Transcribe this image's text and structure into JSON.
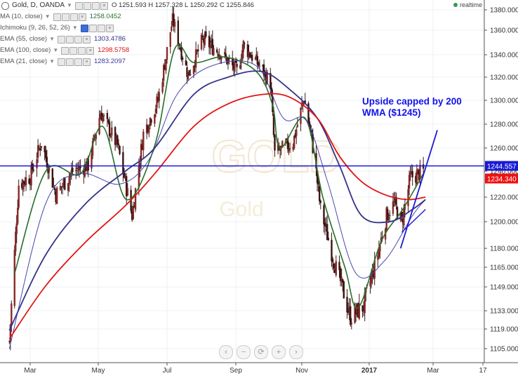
{
  "header": {
    "symbol": "Gold, D, OANDA",
    "ohlc": "O 1251.593 H 1257.328 L 1250.292 C 1255.846",
    "realtime_label": "realtime"
  },
  "indicators": [
    {
      "label": "MA (10, close)",
      "value": "1258.0452",
      "color": "#2a6e2a"
    },
    {
      "label": "Ichimoku (9, 26, 52, 26)",
      "value": "",
      "color": "#888888"
    },
    {
      "label": "EMA (55, close)",
      "value": "1303.4786",
      "color": "#33338a"
    },
    {
      "label": "EMA (100, close)",
      "value": "1298.5758",
      "color": "#dd1111"
    },
    {
      "label": "EMA (21, close)",
      "value": "1283.2097",
      "color": "#3a3aa0"
    }
  ],
  "annotation": {
    "line1": "Upside capped by 200",
    "line2": "WMA ($1245)"
  },
  "price_tags": [
    {
      "label": "1244.557",
      "color": "#1a1ad4"
    },
    {
      "label": "1234.340",
      "color": "#ee1111"
    }
  ],
  "watermark": {
    "symbol": "GOLD",
    "name": "Gold"
  },
  "zoom_controls": [
    "‹",
    "−",
    "⟳",
    "+",
    "›"
  ],
  "chart_data": {
    "type": "candlestick",
    "x_ticks": [
      "Mar",
      "May",
      "Jul",
      "Sep",
      "Nov",
      "2017",
      "Mar",
      "17"
    ],
    "y_ticks": [
      1380,
      1360,
      1340,
      1320,
      1300,
      1280,
      1260,
      1240,
      1220,
      1200,
      1180,
      1165,
      1149,
      1133,
      1119,
      1105
    ],
    "ylim": [
      1100,
      1385
    ],
    "ohlc_anchors": [
      {
        "date": "2016-02-10",
        "close": 1110
      },
      {
        "date": "2016-02-19",
        "close": 1230
      },
      {
        "date": "2016-03-01",
        "close": 1236
      },
      {
        "date": "2016-03-11",
        "close": 1265
      },
      {
        "date": "2016-03-24",
        "close": 1222
      },
      {
        "date": "2016-04-08",
        "close": 1240
      },
      {
        "date": "2016-04-22",
        "close": 1245
      },
      {
        "date": "2016-05-03",
        "close": 1290
      },
      {
        "date": "2016-05-18",
        "close": 1262
      },
      {
        "date": "2016-05-31",
        "close": 1205
      },
      {
        "date": "2016-06-10",
        "close": 1272
      },
      {
        "date": "2016-06-23",
        "close": 1300
      },
      {
        "date": "2016-07-06",
        "close": 1370
      },
      {
        "date": "2016-07-20",
        "close": 1322
      },
      {
        "date": "2016-08-02",
        "close": 1352
      },
      {
        "date": "2016-08-18",
        "close": 1342
      },
      {
        "date": "2016-09-02",
        "close": 1325
      },
      {
        "date": "2016-09-08",
        "close": 1348
      },
      {
        "date": "2016-09-23",
        "close": 1330
      },
      {
        "date": "2016-10-03",
        "close": 1315
      },
      {
        "date": "2016-10-07",
        "close": 1255
      },
      {
        "date": "2016-10-24",
        "close": 1265
      },
      {
        "date": "2016-11-03",
        "close": 1302
      },
      {
        "date": "2016-11-10",
        "close": 1268
      },
      {
        "date": "2016-11-18",
        "close": 1210
      },
      {
        "date": "2016-11-30",
        "close": 1170
      },
      {
        "date": "2016-12-15",
        "close": 1128
      },
      {
        "date": "2016-12-27",
        "close": 1136
      },
      {
        "date": "2017-01-06",
        "close": 1165
      },
      {
        "date": "2017-01-17",
        "close": 1205
      },
      {
        "date": "2017-01-24",
        "close": 1215
      },
      {
        "date": "2017-01-31",
        "close": 1200
      },
      {
        "date": "2017-02-08",
        "close": 1235
      },
      {
        "date": "2017-02-20",
        "close": 1240
      }
    ],
    "series": [
      {
        "name": "MA (10, close)",
        "points": [
          {
            "date": "2016-02-15",
            "y": 1160
          },
          {
            "date": "2016-03-15",
            "y": 1240
          },
          {
            "date": "2016-04-15",
            "y": 1238
          },
          {
            "date": "2016-05-05",
            "y": 1278
          },
          {
            "date": "2016-05-26",
            "y": 1218
          },
          {
            "date": "2016-06-20",
            "y": 1262
          },
          {
            "date": "2016-07-08",
            "y": 1345
          },
          {
            "date": "2016-07-25",
            "y": 1333
          },
          {
            "date": "2016-08-22",
            "y": 1338
          },
          {
            "date": "2016-09-20",
            "y": 1325
          },
          {
            "date": "2016-10-05",
            "y": 1296
          },
          {
            "date": "2016-10-12",
            "y": 1260
          },
          {
            "date": "2016-11-04",
            "y": 1285
          },
          {
            "date": "2016-11-20",
            "y": 1220
          },
          {
            "date": "2016-12-10",
            "y": 1165
          },
          {
            "date": "2016-12-22",
            "y": 1135
          },
          {
            "date": "2017-01-12",
            "y": 1185
          },
          {
            "date": "2017-02-01",
            "y": 1210
          },
          {
            "date": "2017-02-20",
            "y": 1238
          }
        ]
      },
      {
        "name": "EMA (21, close)",
        "points": [
          {
            "date": "2016-02-10",
            "y": 1105
          },
          {
            "date": "2016-03-15",
            "y": 1215
          },
          {
            "date": "2016-04-15",
            "y": 1238
          },
          {
            "date": "2016-05-20",
            "y": 1230
          },
          {
            "date": "2016-06-15",
            "y": 1250
          },
          {
            "date": "2016-07-10",
            "y": 1305
          },
          {
            "date": "2016-08-10",
            "y": 1330
          },
          {
            "date": "2016-09-20",
            "y": 1330
          },
          {
            "date": "2016-10-15",
            "y": 1285
          },
          {
            "date": "2016-11-05",
            "y": 1283
          },
          {
            "date": "2016-11-25",
            "y": 1230
          },
          {
            "date": "2016-12-20",
            "y": 1160
          },
          {
            "date": "2017-01-15",
            "y": 1170
          },
          {
            "date": "2017-02-10",
            "y": 1205
          },
          {
            "date": "2017-02-22",
            "y": 1218
          }
        ]
      },
      {
        "name": "EMA (55, close)",
        "points": [
          {
            "date": "2016-02-10",
            "y": 1118
          },
          {
            "date": "2016-03-15",
            "y": 1175
          },
          {
            "date": "2016-04-20",
            "y": 1215
          },
          {
            "date": "2016-05-25",
            "y": 1240
          },
          {
            "date": "2016-06-20",
            "y": 1260
          },
          {
            "date": "2016-07-25",
            "y": 1305
          },
          {
            "date": "2016-08-25",
            "y": 1320
          },
          {
            "date": "2016-09-25",
            "y": 1325
          },
          {
            "date": "2016-10-20",
            "y": 1310
          },
          {
            "date": "2016-11-15",
            "y": 1285
          },
          {
            "date": "2016-12-05",
            "y": 1245
          },
          {
            "date": "2016-12-25",
            "y": 1205
          },
          {
            "date": "2017-01-20",
            "y": 1200
          },
          {
            "date": "2017-02-10",
            "y": 1210
          },
          {
            "date": "2017-02-22",
            "y": 1218
          }
        ]
      },
      {
        "name": "EMA (100, close)",
        "points": [
          {
            "date": "2016-02-10",
            "y": 1112
          },
          {
            "date": "2016-03-15",
            "y": 1150
          },
          {
            "date": "2016-04-20",
            "y": 1185
          },
          {
            "date": "2016-05-25",
            "y": 1213
          },
          {
            "date": "2016-06-20",
            "y": 1238
          },
          {
            "date": "2016-07-25",
            "y": 1278
          },
          {
            "date": "2016-08-25",
            "y": 1297
          },
          {
            "date": "2016-09-25",
            "y": 1305
          },
          {
            "date": "2016-10-20",
            "y": 1303
          },
          {
            "date": "2016-11-15",
            "y": 1285
          },
          {
            "date": "2016-12-05",
            "y": 1253
          },
          {
            "date": "2016-12-25",
            "y": 1232
          },
          {
            "date": "2017-01-15",
            "y": 1222
          },
          {
            "date": "2017-02-05",
            "y": 1218
          },
          {
            "date": "2017-02-22",
            "y": 1220
          }
        ]
      }
    ],
    "horizontal_line": {
      "name": "200 WMA",
      "y": 1244.557
    },
    "trend_line": {
      "from": {
        "date": "2017-01-30",
        "y": 1180
      },
      "to": {
        "date": "2017-03-05",
        "y": 1275
      }
    },
    "trend_line_lower": {
      "from": {
        "date": "2017-01-31",
        "y": 1192
      },
      "to": {
        "date": "2017-02-22",
        "y": 1210
      }
    }
  }
}
